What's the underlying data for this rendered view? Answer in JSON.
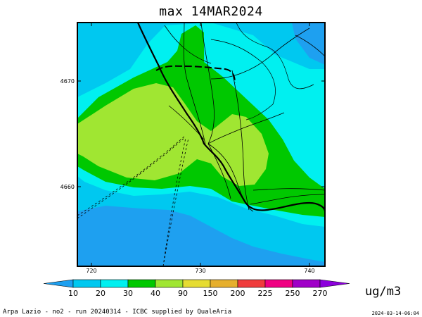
{
  "map": {
    "title": "max 14MAR2024",
    "x_ticks": [
      "720",
      "730",
      "740"
    ],
    "y_ticks": [
      "4670",
      "4660"
    ]
  },
  "colorbar": {
    "unit": "ug/m3",
    "breaks": [
      "10",
      "20",
      "30",
      "40",
      "90",
      "150",
      "200",
      "225",
      "250",
      "270"
    ],
    "colors": [
      "#1ea0f0",
      "#00c8f0",
      "#00f0f0",
      "#00c800",
      "#a0e632",
      "#e6dc32",
      "#e6af2d",
      "#f03c3c",
      "#f00082",
      "#a000c8",
      "#8c00dc"
    ]
  },
  "footer": {
    "left": "Arpa Lazio - no2 - run 20240314 - ICBC supplied by QualeAria",
    "right": "2024-03-14-06:04"
  }
}
